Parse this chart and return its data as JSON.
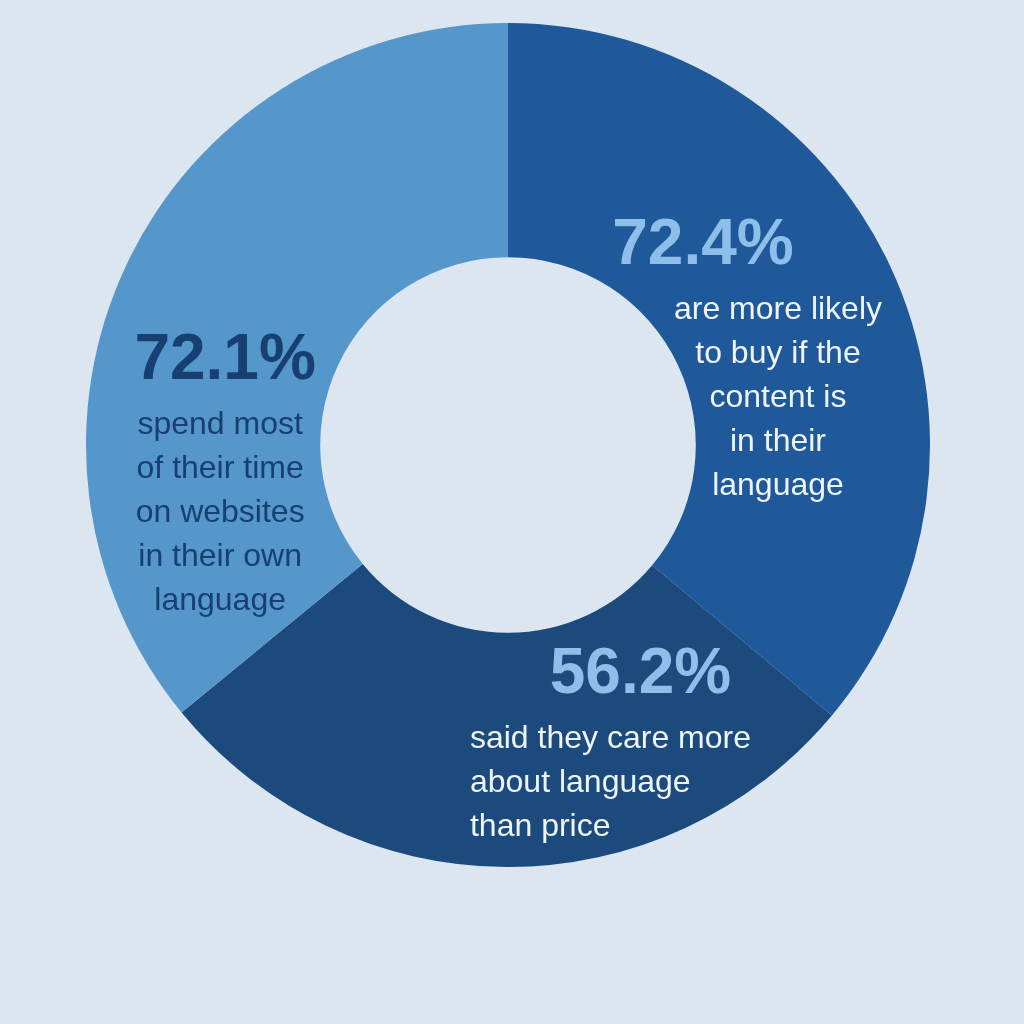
{
  "chart_data": {
    "type": "donut",
    "categories": [
      "are more likely to buy if the content is in their language",
      "said they care more about language than price",
      "spend most of their time on websites in their own language"
    ],
    "values": [
      72.4,
      56.2,
      72.1
    ],
    "colors": [
      "#20599a",
      "#1c4a7c",
      "#5596cb"
    ],
    "value_labels": [
      "72.4%",
      "56.2%",
      "72.1%"
    ]
  }
}
